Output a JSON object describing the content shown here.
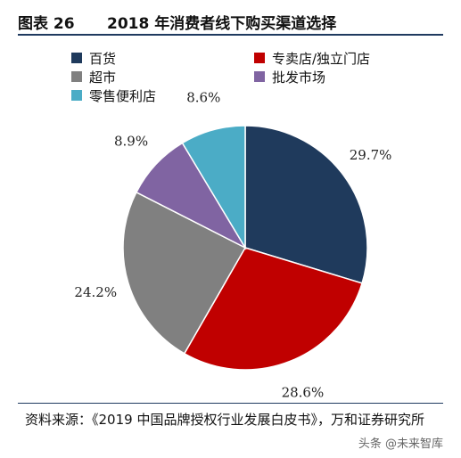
{
  "figure": {
    "number": "图表 26",
    "title": "2018 年消费者线下购买渠道选择"
  },
  "chart_data": {
    "type": "pie",
    "title": "",
    "categories": [
      "百货",
      "专卖店/独立门店",
      "超市",
      "批发市场",
      "零售便利店"
    ],
    "values": [
      29.7,
      28.6,
      24.2,
      8.9,
      8.6
    ],
    "labels": [
      "29.7%",
      "28.6%",
      "24.2%",
      "8.9%",
      "8.6%"
    ],
    "colors": [
      "#1f3a5c",
      "#c00000",
      "#808080",
      "#8064a2",
      "#4bacc6"
    ],
    "start_angle_deg": 0,
    "direction": "clockwise",
    "legend_position": "top"
  },
  "source": {
    "text": "资料来源：《2019 中国品牌授权行业发展白皮书》，万和证券研究所"
  },
  "watermark": "头条 @未来智库"
}
